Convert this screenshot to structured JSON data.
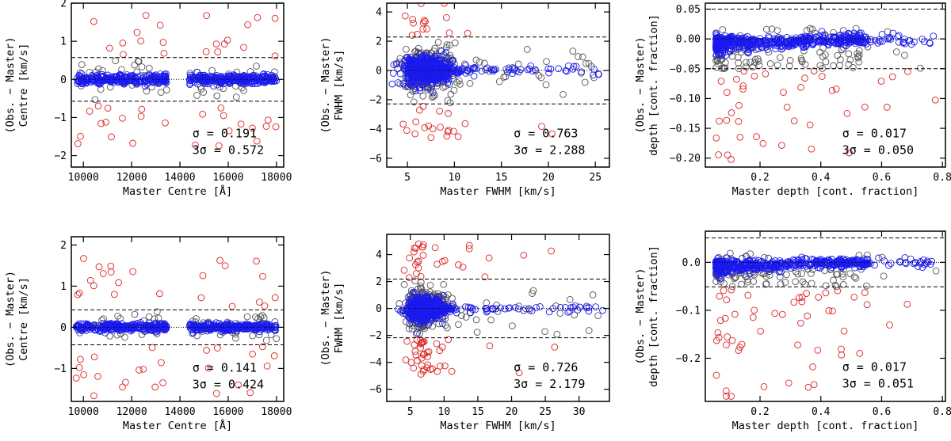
{
  "figure": {
    "rows": 2,
    "cols": 3
  },
  "colors": {
    "clipped": "#dd2222",
    "rejected": "#555555",
    "kept": "#1a1aee",
    "axis": "#000000"
  },
  "chart_data": [
    {
      "type": "scatter",
      "panel": "row1-centre",
      "xlabel": "Master Centre [Å]",
      "ylabel_line1": "(Obs. − Master)",
      "ylabel_line2": "Centre [km/s]",
      "xlim": [
        9500,
        18300
      ],
      "ylim": [
        -2.3,
        2.0
      ],
      "xticks": [
        10000,
        12000,
        14000,
        16000,
        18000
      ],
      "xtick_labels": [
        "10000",
        "12000",
        "14000",
        "16000",
        "18000"
      ],
      "yticks": [
        -2,
        -1,
        0,
        1,
        2
      ],
      "ytick_labels": [
        "−2",
        "−1",
        "0",
        "1",
        "2"
      ],
      "sigma_text": "σ = 0.191",
      "three_sigma_text": "3σ = 0.572",
      "sigma": 0.191,
      "threshold": 0.572,
      "xdomain": "centre",
      "xweight": "uniform",
      "ygen": "centre",
      "clip_mag": 1.8,
      "seed": 11,
      "n_kept": 520,
      "n_rejected": 70,
      "n_clipped": 46
    },
    {
      "type": "scatter",
      "panel": "row1-fwhm",
      "xlabel": "Master FWHM [km/s]",
      "ylabel_line1": "(Obs. − Master)",
      "ylabel_line2": "FWHM [km/s]",
      "xlim": [
        2.8,
        26.5
      ],
      "ylim": [
        -6.6,
        4.6
      ],
      "xticks": [
        5,
        10,
        15,
        20,
        25
      ],
      "xtick_labels": [
        "5",
        "10",
        "15",
        "20",
        "25"
      ],
      "yticks": [
        -6,
        -4,
        -2,
        0,
        2,
        4
      ],
      "ytick_labels": [
        "−6",
        "−4",
        "−2",
        "0",
        "2",
        "4"
      ],
      "sigma_text": "σ = 0.763",
      "three_sigma_text": "3σ = 2.288",
      "sigma": 0.763,
      "threshold": 2.288,
      "xdomain": "fwhm",
      "xweight": "fwhm1",
      "ygen": "fwhm",
      "clip_mag": 4.5,
      "seed": 22,
      "n_kept": 520,
      "n_rejected": 260,
      "n_clipped": 36
    },
    {
      "type": "scatter",
      "panel": "row1-depth",
      "xlabel": "Master depth [cont. fraction]",
      "ylabel_line1": "(Obs. − Master)",
      "ylabel_line2": "depth [cont. fraction]",
      "xlim": [
        0.02,
        0.81
      ],
      "ylim": [
        -0.215,
        0.06
      ],
      "xticks": [
        0.2,
        0.4,
        0.6,
        0.8
      ],
      "xtick_labels": [
        "0.2",
        "0.4",
        "0.6",
        "0.8"
      ],
      "yticks": [
        -0.2,
        -0.15,
        -0.1,
        -0.05,
        0.0,
        0.05
      ],
      "ytick_labels": [
        "−0.20",
        "−0.15",
        "−0.10",
        "−0.05",
        "0.00",
        "0.05"
      ],
      "sigma_text": "σ = 0.017",
      "three_sigma_text": "3σ = 0.050",
      "sigma": 0.017,
      "threshold": 0.05,
      "xdomain": "depth",
      "xweight": "depth",
      "ygen": "depth",
      "clip_mag": 0.2,
      "seed": 33,
      "n_kept": 520,
      "n_rejected": 100,
      "n_clipped": 40
    },
    {
      "type": "scatter",
      "panel": "row2-centre",
      "xlabel": "Master Centre [Å]",
      "ylabel_line1": "(Obs. − Master)",
      "ylabel_line2": "Centre [km/s]",
      "xlim": [
        9500,
        18300
      ],
      "ylim": [
        -1.8,
        2.2
      ],
      "xticks": [
        10000,
        12000,
        14000,
        16000,
        18000
      ],
      "xtick_labels": [
        "10000",
        "12000",
        "14000",
        "16000",
        "18000"
      ],
      "yticks": [
        -1,
        0,
        1,
        2
      ],
      "ytick_labels": [
        "−1",
        "0",
        "1",
        "2"
      ],
      "sigma_text": "σ = 0.141",
      "three_sigma_text": "3σ = 0.424",
      "sigma": 0.141,
      "threshold": 0.424,
      "xdomain": "centre",
      "xweight": "uniform",
      "ygen": "centre",
      "clip_mag": 1.7,
      "seed": 44,
      "n_kept": 520,
      "n_rejected": 90,
      "n_clipped": 48
    },
    {
      "type": "scatter",
      "panel": "row2-fwhm",
      "xlabel": "Master FWHM [km/s]",
      "ylabel_line1": "(Obs. − Master)",
      "ylabel_line2": "FWHM [km/s]",
      "xlim": [
        1.5,
        34.5
      ],
      "ylim": [
        -6.9,
        5.5
      ],
      "xticks": [
        5,
        10,
        15,
        20,
        25,
        30
      ],
      "xtick_labels": [
        "5",
        "10",
        "15",
        "20",
        "25",
        "30"
      ],
      "yticks": [
        -6,
        -4,
        -2,
        0,
        2,
        4
      ],
      "ytick_labels": [
        "−6",
        "−4",
        "−2",
        "0",
        "2",
        "4"
      ],
      "sigma_text": "σ = 0.726",
      "three_sigma_text": "3σ = 2.179",
      "sigma": 0.726,
      "threshold": 2.179,
      "xdomain": "fwhm",
      "xweight": "fwhm2",
      "ygen": "fwhm",
      "clip_mag": 4.8,
      "seed": 55,
      "n_kept": 520,
      "n_rejected": 260,
      "n_clipped": 70
    },
    {
      "type": "scatter",
      "panel": "row2-depth",
      "xlabel": "Master depth [cont. fraction]",
      "ylabel_line1": "(Obs. − Master)",
      "ylabel_line2": "depth [cont. fraction]",
      "xlim": [
        0.02,
        0.81
      ],
      "ylim": [
        -0.29,
        0.065
      ],
      "xticks": [
        0.2,
        0.4,
        0.6,
        0.8
      ],
      "xtick_labels": [
        "0.2",
        "0.4",
        "0.6",
        "0.8"
      ],
      "yticks": [
        -0.2,
        -0.1,
        0.0
      ],
      "ytick_labels": [
        "−0.2",
        "−0.1",
        "0.0"
      ],
      "sigma_text": "σ = 0.017",
      "three_sigma_text": "3σ = 0.051",
      "sigma": 0.017,
      "threshold": 0.051,
      "xdomain": "depth",
      "xweight": "depth",
      "ygen": "depth",
      "clip_mag": 0.28,
      "seed": 66,
      "n_kept": 520,
      "n_rejected": 100,
      "n_clipped": 54
    }
  ]
}
